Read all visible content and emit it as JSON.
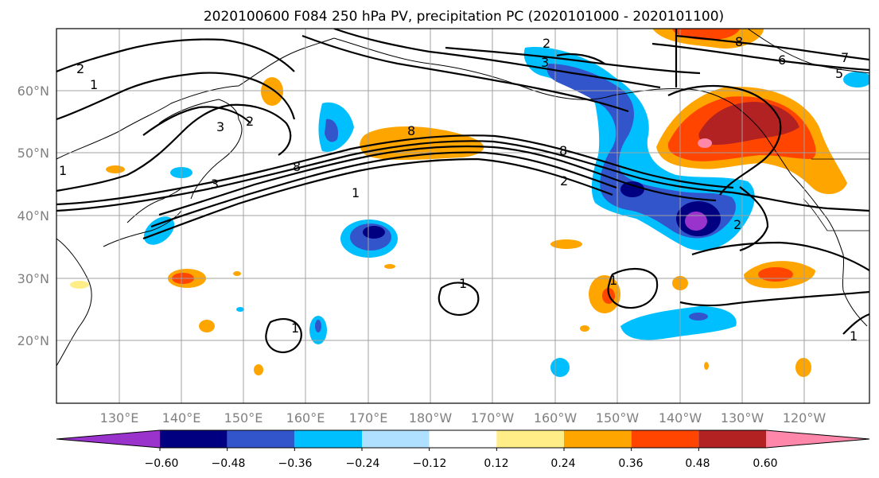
{
  "title": "2020100600 F084 250 hPa PV, precipitation PC (2020101000 - 2020101100)",
  "lon_labels": [
    "130°E",
    "140°E",
    "150°E",
    "160°E",
    "170°E",
    "180°W",
    "170°W",
    "160°W",
    "150°W",
    "140°W",
    "130°W",
    "120°W"
  ],
  "lat_labels": [
    "60°N",
    "50°N",
    "40°N",
    "30°N",
    "20°N"
  ],
  "colorbar": {
    "colors": [
      "#9933cc",
      "#000080",
      "#3355cc",
      "#00bfff",
      "#b0e0ff",
      "#ffffff",
      "#ffee88",
      "#ffa500",
      "#ff4500",
      "#b22222",
      "#ff88aa"
    ],
    "tick_labels": [
      "−0.60",
      "−0.48",
      "−0.36",
      "−0.24",
      "−0.12",
      "0.12",
      "0.24",
      "0.36",
      "0.48",
      "0.60"
    ]
  },
  "contour_labels": [
    "2",
    "1",
    "3",
    "2",
    "1",
    "2",
    "8",
    "3",
    "1",
    "8",
    "2",
    "8",
    "6",
    "7",
    "5",
    "3",
    "8",
    "2",
    "1",
    "1",
    "1",
    "1"
  ]
}
